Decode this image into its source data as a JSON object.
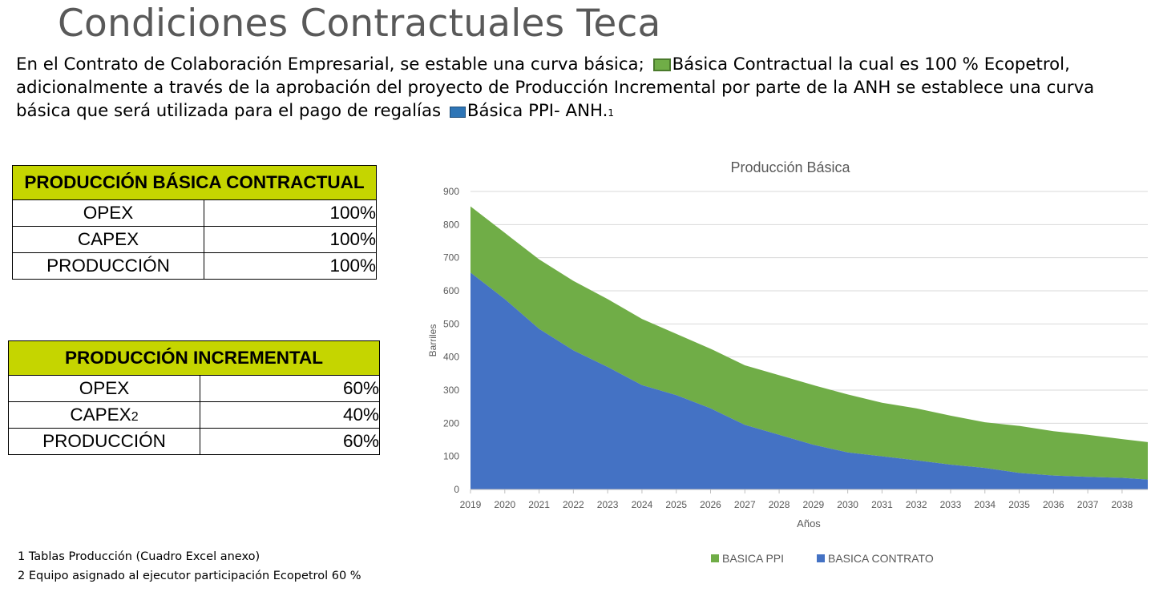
{
  "title": "Condiciones Contractuales Teca",
  "intro": {
    "line1a": "En el Contrato de Colaboración Empresarial, se estable una curva básica; ",
    "line1b": "Básica Contractual la cual es 100 % Ecopetrol,",
    "line2": "adicionalmente a través de la aprobación del proyecto de Producción Incremental por parte de la ANH se establece una curva",
    "line3a": "básica que será utilizada para el pago de regalías ",
    "line3b": "Básica PPI- ANH.",
    "line3_sup": "1",
    "swatch_green": "#70ad47",
    "swatch_blue": "#2e75b6"
  },
  "table_basica": {
    "header": "PRODUCCIÓN BÁSICA CONTRACTUAL",
    "rows": [
      {
        "label": "OPEX",
        "value": "100%"
      },
      {
        "label": "CAPEX",
        "value": "100%"
      },
      {
        "label": "PRODUCCIÓN",
        "value": "100%"
      }
    ]
  },
  "table_incremental": {
    "header": "PRODUCCIÓN INCREMENTAL",
    "rows": [
      {
        "label": "OPEX",
        "value": "60%"
      },
      {
        "label": "CAPEX",
        "label_sub": "2",
        "value": "40%"
      },
      {
        "label": "PRODUCCIÓN",
        "value": "60%"
      }
    ]
  },
  "chart_data": {
    "type": "area",
    "stacked": true,
    "title": "Producción Básica",
    "xlabel": "Años",
    "ylabel": "Barriles",
    "ylim": [
      0,
      900
    ],
    "yticks": [
      0,
      100,
      200,
      300,
      400,
      500,
      600,
      700,
      800,
      900
    ],
    "xlim": [
      2019,
      2038.75
    ],
    "x_tick_labels": [
      "2019",
      "2020",
      "2021",
      "2022",
      "2023",
      "2024",
      "2025",
      "2026",
      "2027",
      "2028",
      "2029",
      "2030",
      "2031",
      "2032",
      "2033",
      "2034",
      "2035",
      "2036",
      "2037",
      "2038"
    ],
    "grid": true,
    "legend_position": "bottom",
    "x": [
      2019,
      2020,
      2021,
      2022,
      2023,
      2024,
      2025,
      2026,
      2027,
      2028,
      2029,
      2030,
      2031,
      2032,
      2033,
      2034,
      2035,
      2036,
      2037,
      2038,
      2038.75
    ],
    "series": [
      {
        "name": "BASICA CONTRATO",
        "color": "#4472c4",
        "values": [
          655,
          575,
          485,
          420,
          370,
          315,
          285,
          245,
          195,
          165,
          135,
          112,
          100,
          88,
          75,
          65,
          50,
          42,
          38,
          35,
          30
        ]
      },
      {
        "name": "BASICA PPI",
        "color": "#70ad47",
        "values": [
          200,
          200,
          210,
          210,
          205,
          200,
          185,
          180,
          180,
          180,
          180,
          175,
          162,
          157,
          148,
          138,
          142,
          134,
          127,
          117,
          113
        ]
      }
    ]
  },
  "footnotes": {
    "f1": "1  Tablas Producción (Cuadro Excel anexo)",
    "f2": "2 Equipo asignado al ejecutor participación Ecopetrol 60 %"
  }
}
